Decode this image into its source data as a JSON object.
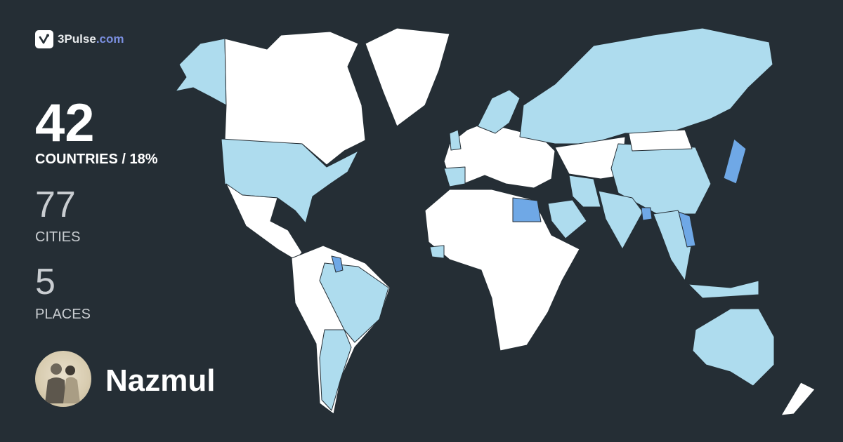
{
  "brand": {
    "name": "3Pulse",
    "tld": ".com",
    "icon": "check-pulse-icon"
  },
  "stats": {
    "countries": {
      "value": "42",
      "label": "COUNTRIES / 18%"
    },
    "cities": {
      "value": "77",
      "label": "CITIES"
    },
    "places": {
      "value": "5",
      "label": "PLACES"
    }
  },
  "user": {
    "name": "Nazmul",
    "avatar": "user-avatar-photo"
  },
  "colors": {
    "background": "#252e35",
    "unvisited": "#ffffff",
    "visited": "#aedcee",
    "highlighted": "#6fa8e6",
    "brand_accent": "#7b8fe0"
  },
  "map": {
    "visited_percent": 18,
    "highlighted_countries": [
      "Egypt",
      "Bangladesh",
      "Japan",
      "Vietnam",
      "Guyana"
    ]
  }
}
